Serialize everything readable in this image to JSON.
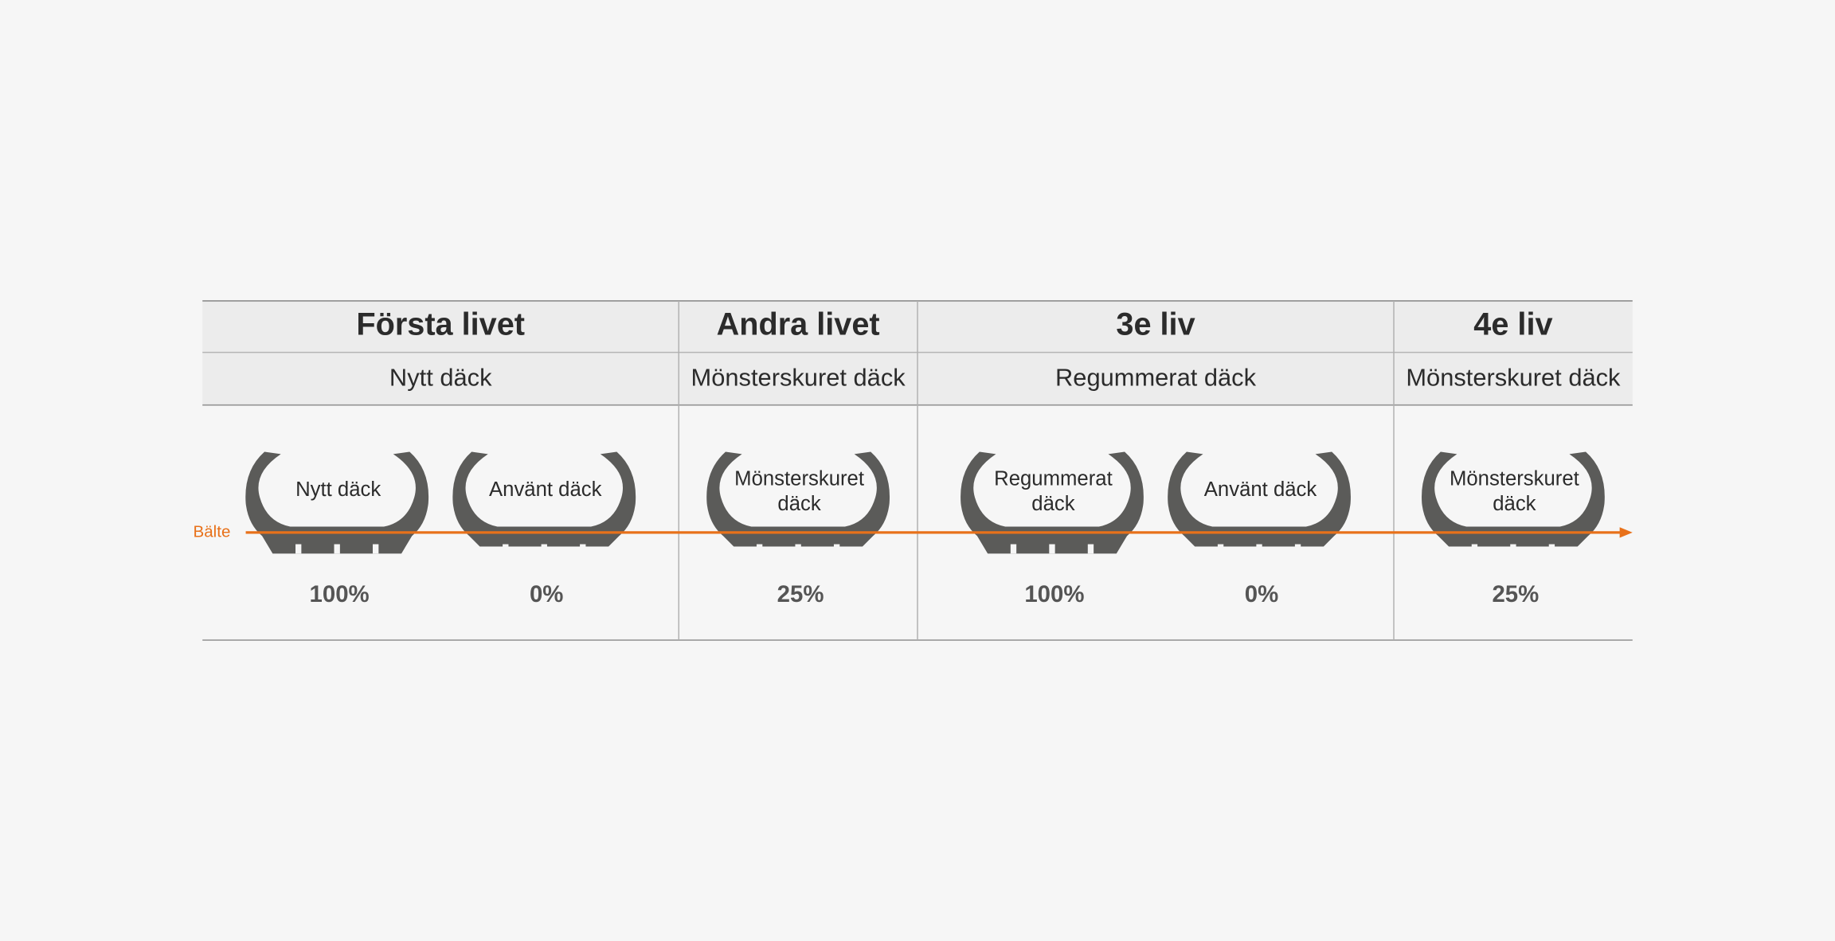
{
  "belt_label": "Bälte",
  "columns": [
    {
      "title": "Första livet",
      "subtitle": "Nytt däck",
      "tires": [
        {
          "label": [
            "Nytt däck"
          ],
          "percent": "100%"
        },
        {
          "label": [
            "Använt däck"
          ],
          "percent": "0%"
        }
      ]
    },
    {
      "title": "Andra livet",
      "subtitle": "Mönsterskuret däck",
      "tires": [
        {
          "label": [
            "Mönsterskuret",
            "däck"
          ],
          "percent": "25%"
        }
      ]
    },
    {
      "title": "3e liv",
      "subtitle": "Regummerat däck",
      "tires": [
        {
          "label": [
            "Regummerat",
            "däck"
          ],
          "percent": "100%"
        },
        {
          "label": [
            "Använt däck"
          ],
          "percent": "0%"
        }
      ]
    },
    {
      "title": "4e liv",
      "subtitle": "Mönsterskuret däck",
      "tires": [
        {
          "label": [
            "Mönsterskuret",
            "däck"
          ],
          "percent": "25%"
        }
      ]
    }
  ]
}
